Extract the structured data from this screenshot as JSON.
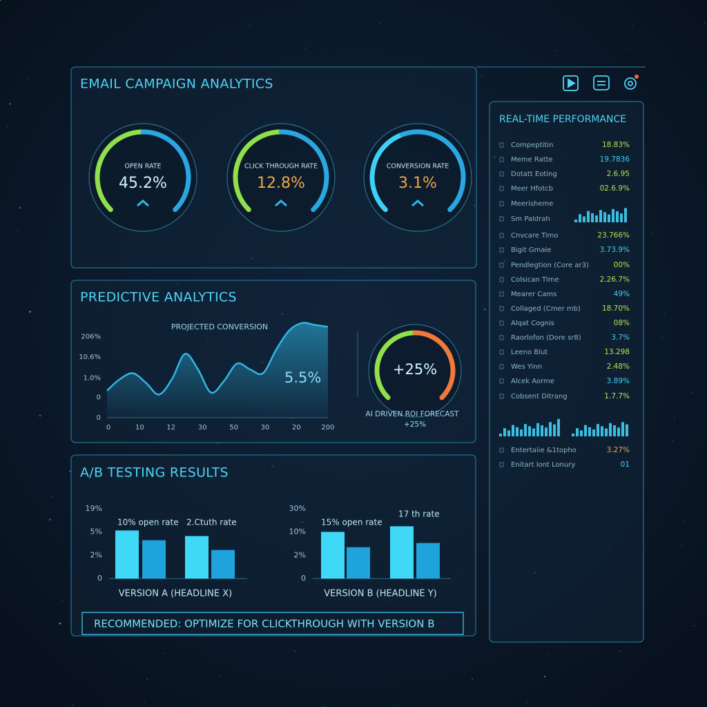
{
  "header": {
    "title": "EMAIL CAMPAIGN ANALYTICS"
  },
  "kpi_gauges": [
    {
      "label": "OPEN RATE",
      "value": "45.2%"
    },
    {
      "label": "CLICK THROUGH RATE",
      "value": "12.8%"
    },
    {
      "label": "CONVERSION RATE",
      "value": "3.1%"
    }
  ],
  "predictive": {
    "title": "PREDICTIVE ANALYTICS",
    "chart": {
      "type": "area",
      "title": "PROJECTED CONVERSION",
      "values": [
        28,
        40,
        46,
        36,
        24,
        40,
        66,
        50,
        26,
        38,
        56,
        50,
        46,
        70,
        90,
        98,
        96,
        94
      ],
      "ylim": [
        0,
        100
      ],
      "yticks": [
        {
          "value": 84,
          "label": "206%"
        },
        {
          "value": 63,
          "label": "10.6%"
        },
        {
          "value": 41,
          "label": "1.0%"
        },
        {
          "value": 21,
          "label": "0"
        },
        0
      ],
      "xtick_labels": [
        "0",
        "10",
        "12",
        "30",
        "50",
        "30",
        "20",
        "200"
      ],
      "annotation": "5.5%",
      "color": "#2fb8e6"
    },
    "roi": {
      "value": "+25%",
      "caption": "AI DRIVEN ROI FORECAST",
      "sub": "+25%"
    }
  },
  "ab_testing": {
    "title": "A/B TESTING RESULTS",
    "charts": [
      {
        "type": "bar",
        "ylim": [
          0,
          100
        ],
        "yticks": [
          {
            "value": 100,
            "label": "19%"
          },
          {
            "value": 67,
            "label": "5%"
          },
          {
            "value": 33,
            "label": "2%"
          },
          0
        ],
        "values": [
          69,
          55,
          61,
          41
        ],
        "annotations": [
          "10% open rate",
          "2.Ctuth rate"
        ],
        "caption": "VERSION A (HEADLINE X)"
      },
      {
        "type": "bar",
        "ylim": [
          0,
          100
        ],
        "yticks": [
          {
            "value": 100,
            "label": "30%"
          },
          {
            "value": 67,
            "label": "10%"
          },
          {
            "value": 33,
            "label": "2%"
          },
          0
        ],
        "values": [
          67,
          45,
          75,
          51
        ],
        "annotations": [
          "15% open rate",
          "17 th rate"
        ],
        "caption": "VERSION B (HEADLINE Y)"
      }
    ],
    "recommendation": "RECOMMENDED: OPTIMIZE FOR CLICKTHROUGH WITH VERSION B"
  },
  "realtime": {
    "title": "REAL-TIME PERFORMANCE",
    "rows": [
      {
        "label": "Compeptitin",
        "value": "18.83%"
      },
      {
        "label": "Meme Ratte",
        "value": "19.7836"
      },
      {
        "label": "Dotatt Eoting",
        "value": "2.6.95"
      },
      {
        "label": "Meer Hfotcb",
        "value": "02.6.9%"
      },
      {
        "label": "Meerisheme"
      },
      {
        "label": "Sm Paldrah"
      },
      {
        "label": "Cnvcare Timo",
        "value": "23.766%"
      },
      {
        "label": "Bigit Gmale",
        "value": "3.73.9%"
      },
      {
        "label": "Pendlegtion (Core ar3)",
        "value": "00%"
      },
      {
        "label": "Colsican Time",
        "value": "2.26.7%"
      },
      {
        "label": "Mearer Cams",
        "value": "49%"
      },
      {
        "label": "Collaged (Cmer mb)",
        "value": "18.70%"
      },
      {
        "label": "Alqat Cognis",
        "value": "08%"
      },
      {
        "label": "Raorlofon (Dore sr8)",
        "value": "3.7%"
      },
      {
        "label": "Leeno Blut",
        "value": "13.298"
      },
      {
        "label": "Wes Yinn",
        "value": "2.48%"
      },
      {
        "label": "Alcek Aorme",
        "value": "3.89%"
      },
      {
        "label": "Cobsent Ditrang",
        "value": "1.7.7%"
      },
      {
        "label": "Entertaiie &1topho",
        "value": "3.27%"
      },
      {
        "label": "Enitart lont Lonury",
        "value": "01"
      }
    ]
  }
}
